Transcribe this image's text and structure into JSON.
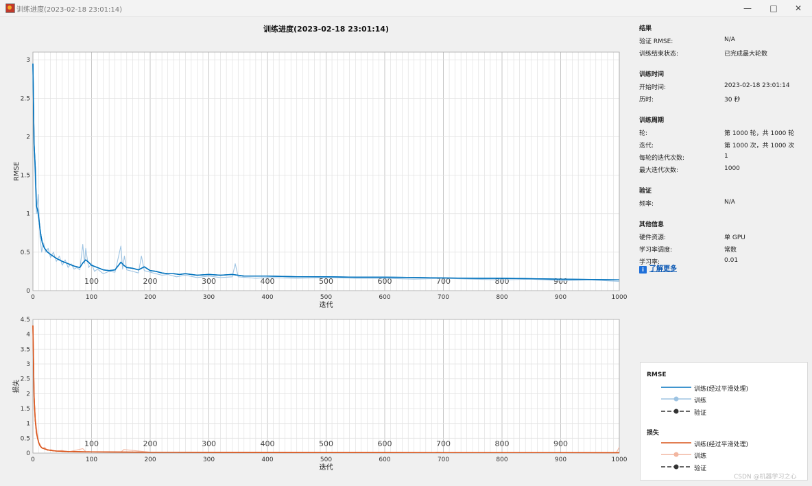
{
  "window": {
    "title": "训练进度(2023-02-18 23:01:14)",
    "min_icon": "minimize-icon",
    "max_icon": "maximize-icon",
    "close_icon": "close-icon"
  },
  "chart_data": [
    {
      "type": "line",
      "title": "训练进度(2023-02-18 23:01:14)",
      "xlabel": "迭代",
      "ylabel": "RMSE",
      "xlim": [
        0,
        1000
      ],
      "ylim": [
        0,
        3.1
      ],
      "xticks": [
        0,
        100,
        200,
        300,
        400,
        500,
        600,
        700,
        800,
        900,
        1000
      ],
      "yticks": [
        0,
        0.5,
        1,
        1.5,
        2,
        2.5,
        3
      ],
      "ytick_labels": [
        "0",
        "0.5",
        "1",
        "1.5",
        "2",
        "2.5",
        "3"
      ],
      "epoch_labels": [
        "100",
        "200",
        "300",
        "400",
        "500",
        "600",
        "700",
        "800",
        "900"
      ],
      "grid": true,
      "series": [
        {
          "name": "训练(经过平滑处理)",
          "color": "#0072bd",
          "x": [
            0,
            2,
            4,
            6,
            8,
            10,
            12,
            14,
            16,
            18,
            20,
            25,
            30,
            40,
            50,
            60,
            70,
            80,
            85,
            90,
            95,
            100,
            110,
            120,
            130,
            140,
            150,
            155,
            160,
            170,
            180,
            190,
            200,
            210,
            220,
            230,
            240,
            250,
            260,
            280,
            300,
            320,
            340,
            360,
            380,
            400,
            450,
            500,
            550,
            600,
            650,
            700,
            750,
            800,
            850,
            900,
            950,
            1000
          ],
          "y": [
            2.95,
            1.9,
            1.6,
            1.1,
            1.05,
            0.95,
            0.8,
            0.7,
            0.62,
            0.58,
            0.55,
            0.5,
            0.47,
            0.42,
            0.38,
            0.35,
            0.32,
            0.3,
            0.36,
            0.4,
            0.37,
            0.33,
            0.3,
            0.27,
            0.26,
            0.27,
            0.37,
            0.33,
            0.3,
            0.29,
            0.27,
            0.31,
            0.26,
            0.25,
            0.23,
            0.22,
            0.22,
            0.21,
            0.22,
            0.2,
            0.21,
            0.2,
            0.21,
            0.19,
            0.19,
            0.19,
            0.18,
            0.18,
            0.175,
            0.175,
            0.17,
            0.165,
            0.16,
            0.16,
            0.155,
            0.15,
            0.145,
            0.14
          ]
        },
        {
          "name": "训练",
          "color": "#9dc3e2",
          "x": [
            0,
            3,
            6,
            9,
            12,
            15,
            18,
            22,
            26,
            30,
            35,
            40,
            45,
            50,
            55,
            60,
            65,
            70,
            75,
            80,
            85,
            88,
            90,
            95,
            100,
            105,
            110,
            120,
            130,
            140,
            150,
            153,
            156,
            160,
            170,
            180,
            185,
            190,
            200,
            210,
            220,
            230,
            245,
            260,
            280,
            300,
            320,
            340,
            345,
            350,
            380,
            400,
            450,
            500,
            550,
            600,
            650,
            700,
            750,
            800,
            850,
            900,
            950,
            1000
          ],
          "y": [
            2.95,
            1.6,
            1.0,
            1.25,
            0.7,
            0.5,
            0.62,
            0.5,
            0.55,
            0.43,
            0.5,
            0.38,
            0.45,
            0.33,
            0.4,
            0.3,
            0.35,
            0.28,
            0.3,
            0.27,
            0.6,
            0.35,
            0.55,
            0.3,
            0.35,
            0.25,
            0.28,
            0.22,
            0.25,
            0.24,
            0.58,
            0.28,
            0.45,
            0.27,
            0.25,
            0.23,
            0.45,
            0.26,
            0.24,
            0.22,
            0.2,
            0.21,
            0.18,
            0.2,
            0.17,
            0.19,
            0.17,
            0.18,
            0.35,
            0.18,
            0.16,
            0.17,
            0.16,
            0.17,
            0.16,
            0.16,
            0.15,
            0.16,
            0.15,
            0.14,
            0.15,
            0.13,
            0.14,
            0.12
          ]
        }
      ]
    },
    {
      "type": "line",
      "xlabel": "迭代",
      "ylabel": "损失",
      "xlim": [
        0,
        1000
      ],
      "ylim": [
        0,
        4.5
      ],
      "xticks": [
        0,
        100,
        200,
        300,
        400,
        500,
        600,
        700,
        800,
        900,
        1000
      ],
      "yticks": [
        0,
        0.5,
        1,
        1.5,
        2,
        2.5,
        3,
        3.5,
        4,
        4.5
      ],
      "ytick_labels": [
        "0",
        "0.5",
        "1",
        "1.5",
        "2",
        "2.5",
        "3",
        "3.5",
        "4",
        "4.5"
      ],
      "epoch_labels": [
        "100",
        "200",
        "300",
        "400",
        "500",
        "600",
        "700",
        "800",
        "900"
      ],
      "grid": true,
      "series": [
        {
          "name": "训练(经过平滑处理)",
          "color": "#d95319",
          "x": [
            0,
            2,
            4,
            6,
            8,
            10,
            12,
            15,
            20,
            25,
            30,
            40,
            50,
            60,
            80,
            100,
            150,
            200,
            300,
            400,
            500,
            600,
            700,
            800,
            900,
            1000
          ],
          "y": [
            4.3,
            1.9,
            1.1,
            0.7,
            0.5,
            0.35,
            0.25,
            0.18,
            0.14,
            0.11,
            0.09,
            0.07,
            0.06,
            0.05,
            0.045,
            0.04,
            0.035,
            0.03,
            0.025,
            0.022,
            0.02,
            0.02,
            0.018,
            0.018,
            0.016,
            0.015
          ]
        },
        {
          "name": "训练",
          "color": "#f2b6a0",
          "x": [
            0,
            3,
            6,
            9,
            12,
            16,
            20,
            25,
            30,
            40,
            50,
            60,
            85,
            90,
            100,
            150,
            155,
            200,
            300,
            400,
            500,
            600,
            700,
            800,
            900,
            995,
            1000
          ],
          "y": [
            4.3,
            1.3,
            0.9,
            0.4,
            0.3,
            0.15,
            0.2,
            0.08,
            0.12,
            0.06,
            0.09,
            0.04,
            0.15,
            0.05,
            0.04,
            0.03,
            0.12,
            0.03,
            0.02,
            0.02,
            0.02,
            0.02,
            0.015,
            0.015,
            0.015,
            0.012,
            0.2
          ]
        }
      ]
    }
  ],
  "info": {
    "sections": [
      {
        "title": "结果",
        "rows": [
          {
            "key": "验证 RMSE:",
            "value": "N/A"
          },
          {
            "key": "训练结束状态:",
            "value": "已完成最大轮数"
          }
        ]
      },
      {
        "title": "训练时间",
        "rows": [
          {
            "key": "开始时间:",
            "value": "2023-02-18 23:01:14"
          },
          {
            "key": "历时:",
            "value": "30 秒"
          }
        ]
      },
      {
        "title": "训练周期",
        "rows": [
          {
            "key": "轮:",
            "value": "第 1000 轮，共 1000 轮"
          },
          {
            "key": "迭代:",
            "value": "第 1000 次，共 1000 次"
          },
          {
            "key": "每轮的迭代次数:",
            "value": "1"
          },
          {
            "key": "最大迭代次数:",
            "value": "1000"
          }
        ]
      },
      {
        "title": "验证",
        "rows": [
          {
            "key": "频率:",
            "value": "N/A"
          }
        ]
      },
      {
        "title": "其他信息",
        "rows": [
          {
            "key": "硬件资源:",
            "value": "单 GPU"
          },
          {
            "key": "学习率调度:",
            "value": "常数"
          },
          {
            "key": "学习率:",
            "value": "0.01"
          }
        ]
      }
    ],
    "learn_more": "了解更多"
  },
  "legend": {
    "rmse_title": "RMSE",
    "loss_title": "损失",
    "smoothed": "训练(经过平滑处理)",
    "training": "训练",
    "validation": "验证",
    "colors": {
      "rmse_smooth": "#0072bd",
      "rmse_train": "#9dc3e2",
      "loss_smooth": "#d95319",
      "loss_train": "#f2b6a0",
      "validation": "#333333"
    }
  },
  "watermark": "CSDN @机器学习之心"
}
